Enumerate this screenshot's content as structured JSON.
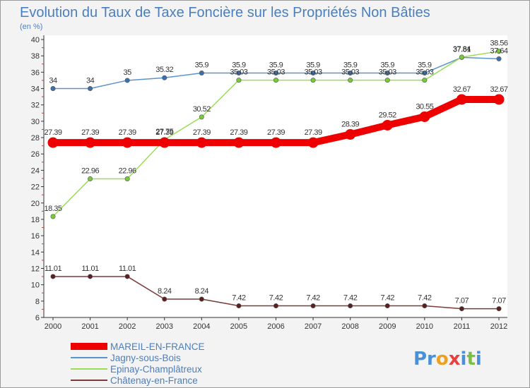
{
  "chart_data": {
    "type": "line",
    "title": "Evolution du Taux de Taxe Foncière sur les Propriétés Non Bâties",
    "subtitle": "(en %)",
    "xlabel": "",
    "ylabel": "(en %)",
    "ylim": [
      6,
      40
    ],
    "yticks": [
      "6",
      "8",
      "10",
      "12",
      "14",
      "16",
      "18",
      "20",
      "22",
      "24",
      "26",
      "28",
      "30",
      "32",
      "34",
      "36",
      "38",
      "40"
    ],
    "categories": [
      "2000",
      "2001",
      "2002",
      "2003",
      "2004",
      "2005",
      "2006",
      "2007",
      "2008",
      "2009",
      "2010",
      "2011",
      "2012"
    ],
    "series": [
      {
        "name": "Jagny-sous-Bois",
        "color": "#5b93cc",
        "marker": "#3a6fb0",
        "width": "thin",
        "values": [
          34,
          34,
          35,
          35.32,
          35.9,
          35.9,
          35.9,
          35.9,
          35.9,
          35.9,
          35.9,
          37.81,
          37.64
        ],
        "labels": [
          "34",
          "34",
          "35",
          "35.32",
          "35.9",
          "35.9",
          "35.9",
          "35.9",
          "35.9",
          "35.9",
          "35.9",
          "37.81",
          "37.64"
        ]
      },
      {
        "name": "Epinay-Champlâtreux",
        "color": "#99dd55",
        "marker": "#77cc33",
        "width": "thin",
        "values": [
          18.35,
          22.96,
          22.96,
          27.75,
          30.52,
          35.03,
          35.03,
          35.03,
          35.03,
          35.03,
          35.03,
          37.84,
          38.56
        ],
        "labels": [
          "18.35",
          "22.96",
          "22.96",
          "27.75",
          "30.52",
          "35.03",
          "35.03",
          "35.03",
          "35.03",
          "35.03",
          "35.03",
          "37.84",
          "38.56"
        ]
      },
      {
        "name": "Châtenay-en-France",
        "color": "#7a3a3a",
        "marker": "#5a2020",
        "width": "thin",
        "values": [
          11.01,
          11.01,
          11.01,
          8.24,
          8.24,
          7.42,
          7.42,
          7.42,
          7.42,
          7.42,
          7.42,
          7.07,
          7.07
        ],
        "labels": [
          "11.01",
          "11.01",
          "11.01",
          "8.24",
          "8.24",
          "7.42",
          "7.42",
          "7.42",
          "7.42",
          "7.42",
          "7.42",
          "7.07",
          "7.07"
        ]
      },
      {
        "name": "MAREIL-EN-FRANCE",
        "color": "#ee0000",
        "marker": "#ee0000",
        "width": "thick",
        "values": [
          27.39,
          27.39,
          27.39,
          27.39,
          27.39,
          27.39,
          27.39,
          27.39,
          28.39,
          29.52,
          30.55,
          32.67,
          32.67
        ],
        "labels": [
          "27.39",
          "27.39",
          "27.39",
          "27.39",
          "27.39",
          "27.39",
          "27.39",
          "27.39",
          "28.39",
          "29.52",
          "30.55",
          "32.67",
          "32.67"
        ]
      }
    ],
    "legend": [
      "MAREIL-EN-FRANCE",
      "Jagny-sous-Bois",
      "Epinay-Champlâtreux",
      "Châtenay-en-France"
    ],
    "legend_position": "bottom-left",
    "grid": false
  },
  "brand": {
    "logo_parts": [
      "Pr",
      "o",
      "x",
      "i",
      "t",
      "i"
    ]
  }
}
